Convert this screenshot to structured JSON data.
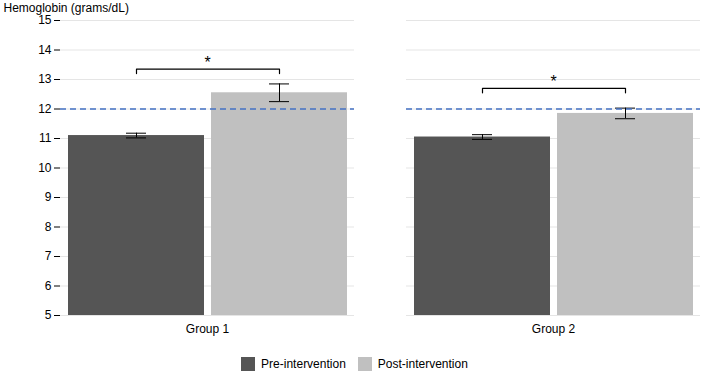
{
  "chart_data": {
    "type": "bar",
    "categories": [
      "Group 1",
      "Group 2"
    ],
    "series": [
      {
        "name": "Pre-intervention",
        "color": "#555555",
        "values": [
          11.1,
          11.05
        ],
        "errors": [
          0.08,
          0.08
        ]
      },
      {
        "name": "Post-intervention",
        "color": "#c0c0c0",
        "values": [
          12.55,
          11.85
        ],
        "errors": [
          0.3,
          0.18
        ]
      }
    ],
    "ylabel": "Hemoglobin (grams/dL)",
    "ylim": [
      5,
      15
    ],
    "yticks": [
      5,
      6,
      7,
      8,
      9,
      10,
      11,
      12,
      13,
      14,
      15
    ],
    "grid": true,
    "reference_line": {
      "value": 12.0,
      "color": "#4472c4",
      "line_style": "dashed"
    },
    "annotations": [
      {
        "text": "*",
        "category": "Group 1",
        "y": 13.2
      },
      {
        "text": "*",
        "category": "Group 2",
        "y": 12.55
      }
    ]
  }
}
